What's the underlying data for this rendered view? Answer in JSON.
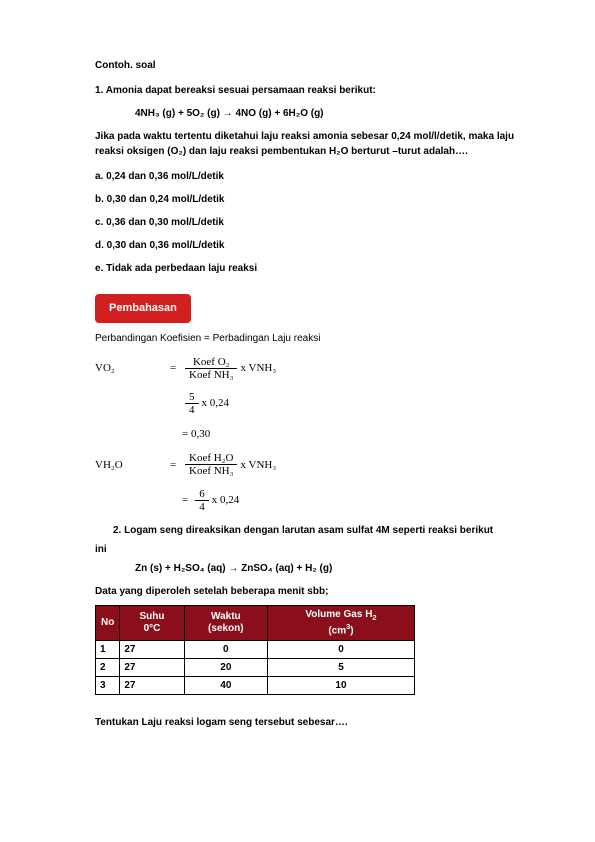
{
  "title": "Contoh. soal",
  "q1": {
    "prompt": "1.  Amonia dapat bereaksi  sesuai persamaan reaksi berikut:",
    "equation": "4NH₃ (g) + 5O₂  (g) →  4NO (g) + 6H₂O (g)",
    "text": "Jika pada waktu tertentu diketahui laju reaksi amonia sebesar 0,24 mol/l/detik, maka laju reaksi oksigen (O₂) dan laju reaksi pembentukan H₂O berturut –turut adalah….",
    "options": {
      "a": "a.  0,24 dan 0,36 mol/L/detik",
      "b": "b.  0,30 dan 0,24 mol/L/detik",
      "c": "c.  0,36 dan 0,30 mol/L/detik",
      "d": "d.  0,30 dan 0,36 mol/L/detik",
      "e": "e.  Tidak ada perbedaan laju reaksi"
    }
  },
  "pembahasan_label": "Pembahasan",
  "subtitle": "Perbandingan Koefisien = Perbadingan Laju reaksi",
  "formula1": {
    "label": "VO₂",
    "eq": "=",
    "num": "Koef O₂",
    "den": "Koef NH₃",
    "after": " x VNH₃",
    "step2_num": "5",
    "step2_den": "4",
    "step2_after": " x 0,24",
    "result": "= 0,30"
  },
  "formula2": {
    "label": "VH₂O",
    "eq": "=",
    "num": "Koef H₂O",
    "den": "Koef NH₃",
    "after": " x VNH₃",
    "step2_eq": "=",
    "step2_num": "6",
    "step2_den": "4",
    "step2_after": " x 0,24"
  },
  "q2": {
    "prompt": "2.  Logam seng direaksikan dengan larutan asam sulfat 4M seperti reaksi berikut",
    "ini": "ini",
    "equation": "Zn (s) + H₂SO₄ (aq) → ZnSO₄ (aq) + H₂ (g)",
    "caption": "Data yang diperoleh setelah beberapa menit sbb;"
  },
  "table": {
    "headers": {
      "no": "No",
      "suhu": "Suhu\n0°C",
      "waktu": "Waktu\n(sekon)",
      "volume": "Volume Gas H₂\n(cm³)"
    },
    "rows": [
      {
        "no": "1",
        "suhu": "27",
        "waktu": "0",
        "volume": "0"
      },
      {
        "no": "2",
        "suhu": "27",
        "waktu": "20",
        "volume": "5"
      },
      {
        "no": "3",
        "suhu": "27",
        "waktu": "40",
        "volume": "10"
      }
    ]
  },
  "final_prompt": "Tentukan Laju reaksi logam seng tersebut sebesar…."
}
